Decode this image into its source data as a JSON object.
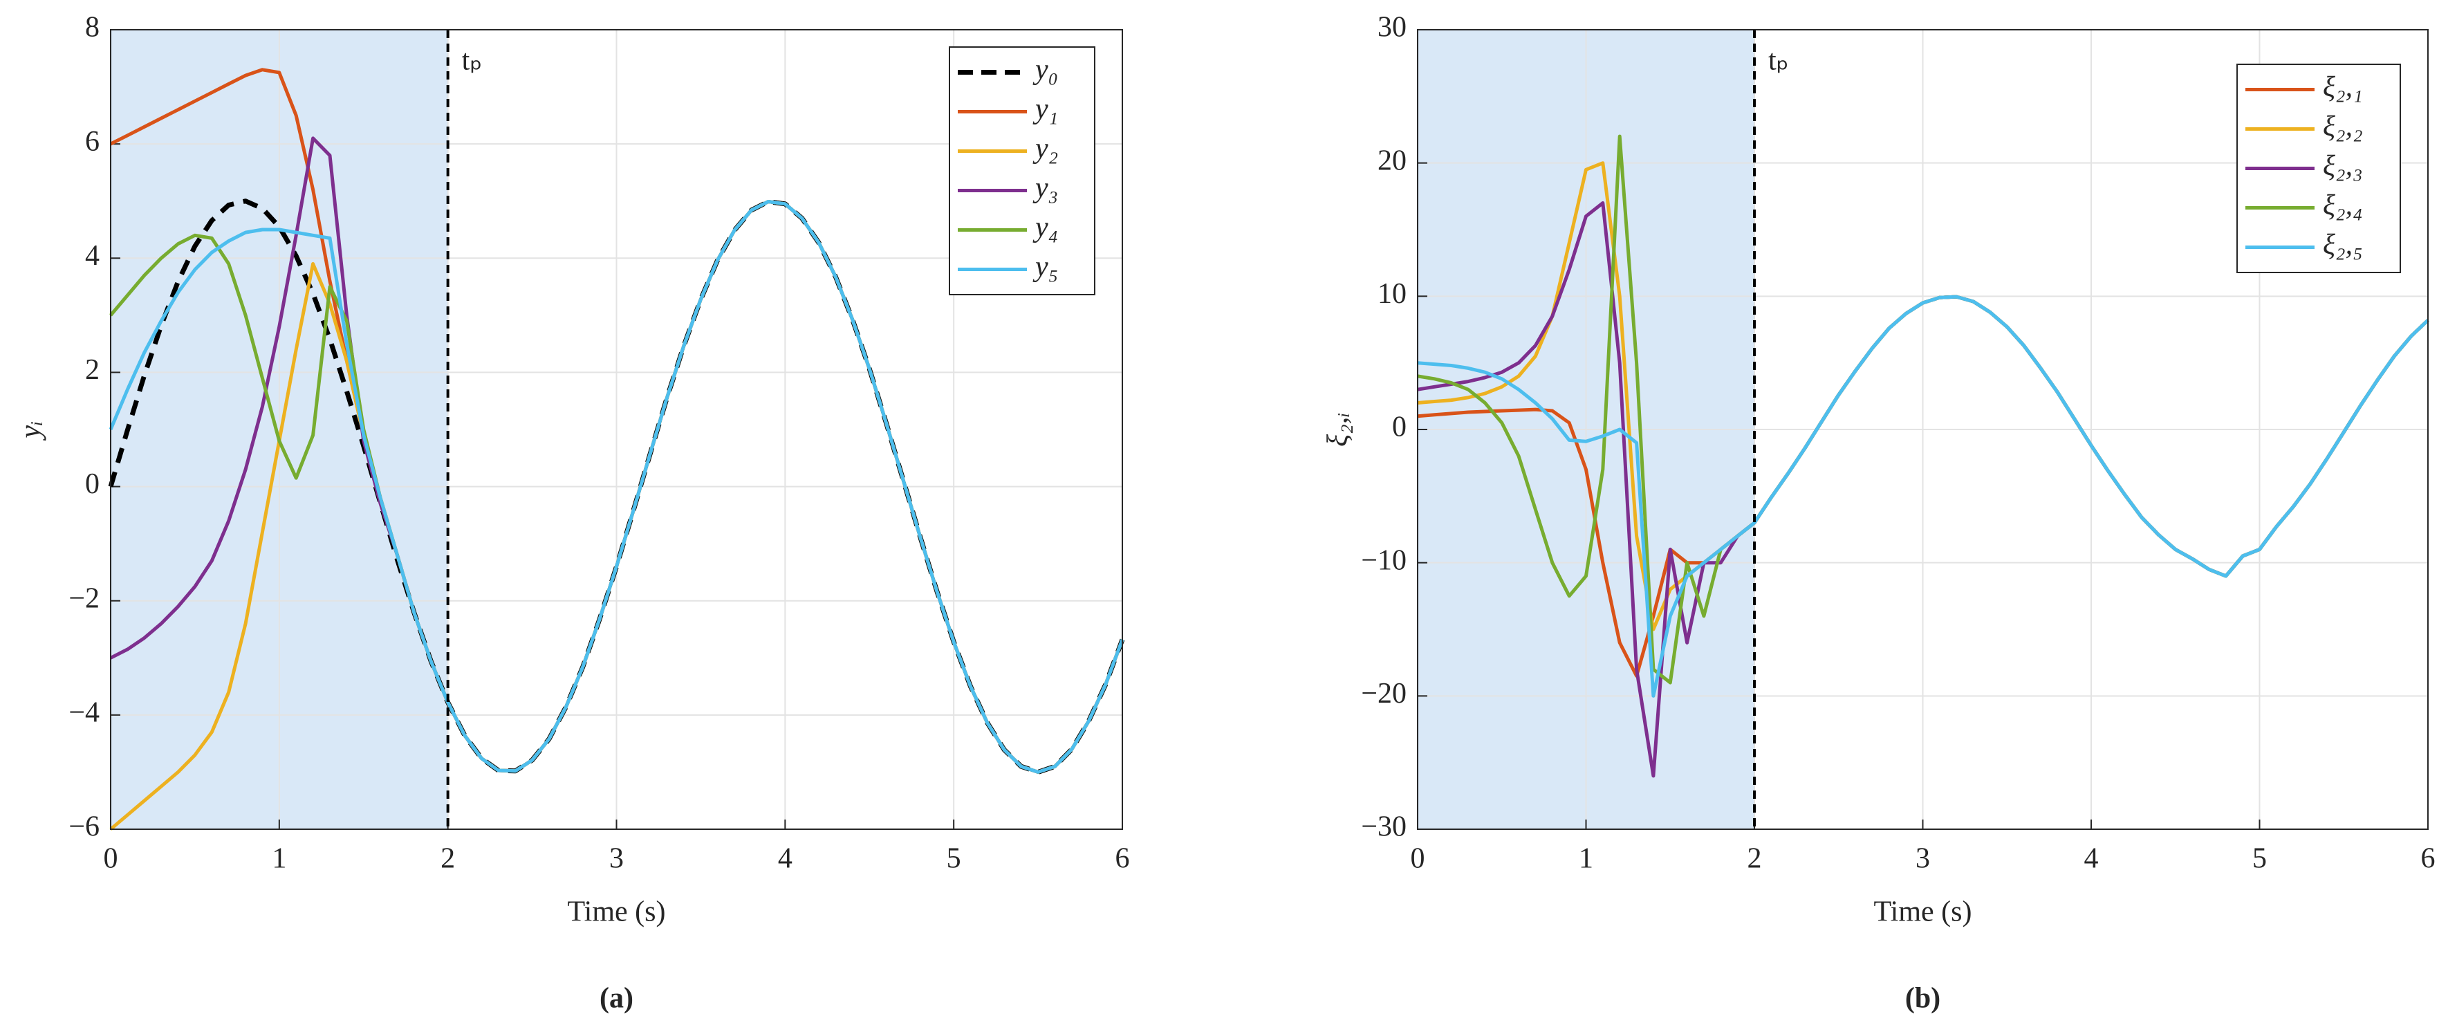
{
  "chart_data": [
    {
      "type": "line",
      "caption": "(a)",
      "xlabel": "Time (s)",
      "ylabel": "yᵢ",
      "annotation": {
        "text": "tₚ",
        "x": 2
      },
      "shaded_region": [
        0,
        2
      ],
      "shade_color": "#d9e8f7",
      "xlim": [
        0,
        6
      ],
      "xticks": [
        0,
        1,
        2,
        3,
        4,
        5,
        6
      ],
      "ylim": [
        -6,
        8
      ],
      "yticks": [
        {
          "value": -6,
          "label": "−6"
        },
        {
          "value": -4,
          "label": "−4"
        },
        {
          "value": -2,
          "label": "−2"
        },
        0,
        2,
        4,
        6,
        8
      ],
      "grid": true,
      "legend": "upper right",
      "x": [
        0,
        0.1,
        0.2,
        0.3,
        0.4,
        0.5,
        0.6,
        0.7,
        0.8,
        0.9,
        1,
        1.1,
        1.2,
        1.3,
        1.4,
        1.5,
        1.6,
        1.7,
        1.8,
        1.9,
        2,
        2.1,
        2.2,
        2.3,
        2.4,
        2.5,
        2.6,
        2.7,
        2.8,
        2.9,
        3,
        3.1,
        3.2,
        3.3,
        3.4,
        3.5,
        3.6,
        3.7,
        3.8,
        3.9,
        4,
        4.1,
        4.2,
        4.3,
        4.4,
        4.5,
        4.6,
        4.7,
        4.8,
        4.9,
        5,
        5.1,
        5.2,
        5.3,
        5.4,
        5.5,
        5.6,
        5.7,
        5.8,
        5.9,
        6
      ],
      "series": [
        {
          "name": "y₀",
          "color": "#000000",
          "dashed": true,
          "values": [
            0,
            0.99,
            1.95,
            2.82,
            3.59,
            4.21,
            4.66,
            4.93,
            5.0,
            4.87,
            4.55,
            4.04,
            3.38,
            2.58,
            1.67,
            0.71,
            -0.29,
            -1.28,
            -2.21,
            -3.06,
            -3.78,
            -4.36,
            -4.76,
            -4.97,
            -4.98,
            -4.79,
            -4.42,
            -3.86,
            -3.16,
            -2.32,
            -1.4,
            -0.42,
            0.58,
            1.56,
            2.47,
            3.28,
            3.97,
            4.49,
            4.84,
            4.99,
            4.95,
            4.7,
            4.27,
            3.67,
            2.92,
            2.06,
            1.11,
            0.12,
            -0.87,
            -1.83,
            -2.72,
            -3.5,
            -4.14,
            -4.61,
            -4.9,
            -5.0,
            -4.9,
            -4.6,
            -4.11,
            -3.47,
            -2.68
          ]
        },
        {
          "name": "y₁",
          "color": "#d95319",
          "values": [
            6,
            6.15,
            6.3,
            6.45,
            6.6,
            6.75,
            6.9,
            7.05,
            7.2,
            7.3,
            7.25,
            6.5,
            5.2,
            3.6,
            2.2,
            0.9,
            -0.2,
            -1.2,
            -2.21,
            -3.06,
            -3.78,
            -4.36,
            -4.76,
            -4.97,
            -4.98,
            -4.79,
            -4.42,
            -3.86,
            -3.16,
            -2.32,
            -1.4,
            -0.42,
            0.58,
            1.56,
            2.47,
            3.28,
            3.97,
            4.49,
            4.84,
            4.99,
            4.95,
            4.7,
            4.27,
            3.67,
            2.92,
            2.06,
            1.11,
            0.12,
            -0.87,
            -1.83,
            -2.72,
            -3.5,
            -4.14,
            -4.61,
            -4.9,
            -5.0,
            -4.9,
            -4.6,
            -4.11,
            -3.47,
            -2.68
          ]
        },
        {
          "name": "y₂",
          "color": "#edb120",
          "values": [
            -6,
            -5.75,
            -5.5,
            -5.25,
            -5,
            -4.7,
            -4.3,
            -3.6,
            -2.4,
            -0.8,
            0.8,
            2.4,
            3.9,
            3.2,
            2.2,
            0.9,
            -0.2,
            -1.2,
            -2.21,
            -3.06,
            -3.78,
            -4.36,
            -4.76,
            -4.97,
            -4.98,
            -4.79,
            -4.42,
            -3.86,
            -3.16,
            -2.32,
            -1.4,
            -0.42,
            0.58,
            1.56,
            2.47,
            3.28,
            3.97,
            4.49,
            4.84,
            4.99,
            4.95,
            4.7,
            4.27,
            3.67,
            2.92,
            2.06,
            1.11,
            0.12,
            -0.87,
            -1.83,
            -2.72,
            -3.5,
            -4.14,
            -4.61,
            -4.9,
            -5.0,
            -4.9,
            -4.6,
            -4.11,
            -3.47,
            -2.68
          ]
        },
        {
          "name": "y₃",
          "color": "#7e2f8e",
          "values": [
            -3,
            -2.85,
            -2.65,
            -2.4,
            -2.1,
            -1.75,
            -1.3,
            -0.6,
            0.3,
            1.4,
            2.8,
            4.4,
            6.1,
            5.8,
            3.0,
            0.8,
            -0.3,
            -1.2,
            -2.21,
            -3.06,
            -3.78,
            -4.36,
            -4.76,
            -4.97,
            -4.98,
            -4.79,
            -4.42,
            -3.86,
            -3.16,
            -2.32,
            -1.4,
            -0.42,
            0.58,
            1.56,
            2.47,
            3.28,
            3.97,
            4.49,
            4.84,
            4.99,
            4.95,
            4.7,
            4.27,
            3.67,
            2.92,
            2.06,
            1.11,
            0.12,
            -0.87,
            -1.83,
            -2.72,
            -3.5,
            -4.14,
            -4.61,
            -4.9,
            -5.0,
            -4.9,
            -4.6,
            -4.11,
            -3.47,
            -2.68
          ]
        },
        {
          "name": "y₄",
          "color": "#77ac30",
          "values": [
            3,
            3.35,
            3.7,
            4.0,
            4.25,
            4.4,
            4.35,
            3.9,
            3.0,
            1.9,
            0.8,
            0.15,
            0.9,
            3.5,
            2.9,
            1.0,
            -0.2,
            -1.2,
            -2.21,
            -3.06,
            -3.78,
            -4.36,
            -4.76,
            -4.97,
            -4.98,
            -4.79,
            -4.42,
            -3.86,
            -3.16,
            -2.32,
            -1.4,
            -0.42,
            0.58,
            1.56,
            2.47,
            3.28,
            3.97,
            4.49,
            4.84,
            4.99,
            4.95,
            4.7,
            4.27,
            3.67,
            2.92,
            2.06,
            1.11,
            0.12,
            -0.87,
            -1.83,
            -2.72,
            -3.5,
            -4.14,
            -4.61,
            -4.9,
            -5.0,
            -4.9,
            -4.6,
            -4.11,
            -3.47,
            -2.68
          ]
        },
        {
          "name": "y₅",
          "color": "#4dbeee",
          "values": [
            1,
            1.7,
            2.35,
            2.9,
            3.4,
            3.8,
            4.1,
            4.3,
            4.45,
            4.5,
            4.5,
            4.45,
            4.4,
            4.35,
            2.5,
            0.9,
            -0.2,
            -1.2,
            -2.21,
            -3.06,
            -3.78,
            -4.36,
            -4.76,
            -4.97,
            -4.98,
            -4.79,
            -4.42,
            -3.86,
            -3.16,
            -2.32,
            -1.4,
            -0.42,
            0.58,
            1.56,
            2.47,
            3.28,
            3.97,
            4.49,
            4.84,
            4.99,
            4.95,
            4.7,
            4.27,
            3.67,
            2.92,
            2.06,
            1.11,
            0.12,
            -0.87,
            -1.83,
            -2.72,
            -3.5,
            -4.14,
            -4.61,
            -4.9,
            -5.0,
            -4.9,
            -4.6,
            -4.11,
            -3.47,
            -2.68
          ]
        }
      ]
    },
    {
      "type": "line",
      "caption": "(b)",
      "xlabel": "Time (s)",
      "ylabel": "ξ₂,ᵢ",
      "annotation": {
        "text": "tₚ",
        "x": 2
      },
      "shaded_region": [
        0,
        2
      ],
      "shade_color": "#d9e8f7",
      "xlim": [
        0,
        6
      ],
      "xticks": [
        0,
        1,
        2,
        3,
        4,
        5,
        6
      ],
      "ylim": [
        -30,
        30
      ],
      "yticks": [
        {
          "value": -30,
          "label": "−30"
        },
        {
          "value": -20,
          "label": "−20"
        },
        {
          "value": -10,
          "label": "−10"
        },
        0,
        10,
        20,
        30
      ],
      "grid": true,
      "legend": "upper right",
      "x": [
        0,
        0.1,
        0.2,
        0.3,
        0.4,
        0.5,
        0.6,
        0.7,
        0.8,
        0.9,
        1,
        1.1,
        1.2,
        1.3,
        1.4,
        1.5,
        1.6,
        1.7,
        1.8,
        1.9,
        2,
        2.1,
        2.2,
        2.3,
        2.4,
        2.5,
        2.6,
        2.7,
        2.8,
        2.9,
        3,
        3.1,
        3.2,
        3.3,
        3.4,
        3.5,
        3.6,
        3.7,
        3.8,
        3.9,
        4,
        4.1,
        4.2,
        4.3,
        4.4,
        4.5,
        4.6,
        4.7,
        4.8,
        4.9,
        5,
        5.1,
        5.2,
        5.3,
        5.4,
        5.5,
        5.6,
        5.7,
        5.8,
        5.9,
        6
      ],
      "series": [
        {
          "name": "ξ₂,₁",
          "color": "#d95319",
          "values": [
            1,
            1.1,
            1.2,
            1.3,
            1.35,
            1.4,
            1.45,
            1.5,
            1.4,
            0.5,
            -3,
            -10,
            -16,
            -18.5,
            -14,
            -9,
            -10,
            -10,
            -9,
            -8,
            -7,
            -5.1,
            -3.3,
            -1.4,
            0.6,
            2.6,
            4.4,
            6.1,
            7.6,
            8.7,
            9.5,
            9.9,
            9.96,
            9.6,
            8.8,
            7.7,
            6.3,
            4.6,
            2.8,
            0.8,
            -1.2,
            -3.1,
            -4.9,
            -6.6,
            -7.9,
            -9.0,
            -9.7,
            -10.5,
            -11,
            -9.5,
            -9,
            -7.3,
            -5.8,
            -4.1,
            -2.2,
            -0.2,
            1.8,
            3.7,
            5.5,
            7.0,
            8.2
          ]
        },
        {
          "name": "ξ₂,₂",
          "color": "#edb120",
          "values": [
            2,
            2.1,
            2.2,
            2.4,
            2.7,
            3.2,
            4,
            5.5,
            8.5,
            14,
            19.5,
            20,
            10,
            -8,
            -15,
            -12,
            -11,
            -10,
            -9,
            -8,
            -7,
            -5.1,
            -3.3,
            -1.4,
            0.6,
            2.6,
            4.4,
            6.1,
            7.6,
            8.7,
            9.5,
            9.9,
            9.96,
            9.6,
            8.8,
            7.7,
            6.3,
            4.6,
            2.8,
            0.8,
            -1.2,
            -3.1,
            -4.9,
            -6.6,
            -7.9,
            -9.0,
            -9.7,
            -10.5,
            -11,
            -9.5,
            -9,
            -7.3,
            -5.8,
            -4.1,
            -2.2,
            -0.2,
            1.8,
            3.7,
            5.5,
            7.0,
            8.2
          ]
        },
        {
          "name": "ξ₂,₃",
          "color": "#7e2f8e",
          "values": [
            3,
            3.2,
            3.4,
            3.6,
            3.9,
            4.3,
            5,
            6.3,
            8.5,
            12,
            16,
            17,
            5,
            -18,
            -26,
            -9,
            -16,
            -10,
            -10,
            -8,
            -7,
            -5.1,
            -3.3,
            -1.4,
            0.6,
            2.6,
            4.4,
            6.1,
            7.6,
            8.7,
            9.5,
            9.9,
            9.96,
            9.6,
            8.8,
            7.7,
            6.3,
            4.6,
            2.8,
            0.8,
            -1.2,
            -3.1,
            -4.9,
            -6.6,
            -7.9,
            -9.0,
            -9.7,
            -10.5,
            -11,
            -9.5,
            -9,
            -7.3,
            -5.8,
            -4.1,
            -2.2,
            -0.2,
            1.8,
            3.7,
            5.5,
            7.0,
            8.2
          ]
        },
        {
          "name": "ξ₂,₄",
          "color": "#77ac30",
          "values": [
            4,
            3.8,
            3.5,
            3,
            2,
            0.5,
            -2,
            -6,
            -10,
            -12.5,
            -11,
            -3,
            22,
            5,
            -18,
            -19,
            -10,
            -14,
            -9,
            -8,
            -7,
            -5.1,
            -3.3,
            -1.4,
            0.6,
            2.6,
            4.4,
            6.1,
            7.6,
            8.7,
            9.5,
            9.9,
            9.96,
            9.6,
            8.8,
            7.7,
            6.3,
            4.6,
            2.8,
            0.8,
            -1.2,
            -3.1,
            -4.9,
            -6.6,
            -7.9,
            -9.0,
            -9.7,
            -10.5,
            -11,
            -9.5,
            -9,
            -7.3,
            -5.8,
            -4.1,
            -2.2,
            -0.2,
            1.8,
            3.7,
            5.5,
            7.0,
            8.2
          ]
        },
        {
          "name": "ξ₂,₅",
          "color": "#4dbeee",
          "values": [
            5,
            4.9,
            4.8,
            4.6,
            4.3,
            3.8,
            3,
            2,
            0.8,
            -0.8,
            -0.9,
            -0.5,
            0,
            -1,
            -20,
            -14,
            -11,
            -10,
            -9,
            -8,
            -7,
            -5.1,
            -3.3,
            -1.4,
            0.6,
            2.6,
            4.4,
            6.1,
            7.6,
            8.7,
            9.5,
            9.9,
            9.96,
            9.6,
            8.8,
            7.7,
            6.3,
            4.6,
            2.8,
            0.8,
            -1.2,
            -3.1,
            -4.9,
            -6.6,
            -7.9,
            -9.0,
            -9.7,
            -10.5,
            -11,
            -9.5,
            -9,
            -7.3,
            -5.8,
            -4.1,
            -2.2,
            -0.2,
            1.8,
            3.7,
            5.5,
            7.0,
            8.2
          ]
        }
      ]
    }
  ]
}
